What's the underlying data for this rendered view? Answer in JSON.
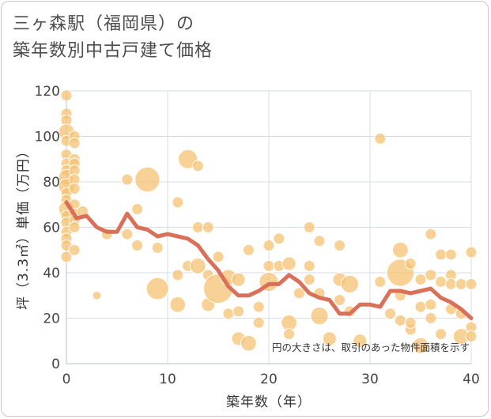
{
  "chart_data": {
    "type": "scatter",
    "title_line1": "三ヶ森駅（福岡県）の",
    "title_line2": "築年数別中古戸建て価格",
    "xlabel": "築年数（年）",
    "ylabel": "坪（3.3㎡）単価（万円）",
    "note": "円の大きさは、取引のあった物件面積を示す",
    "xlim": [
      0,
      40
    ],
    "ylim": [
      0,
      120
    ],
    "xticks": [
      "0",
      "10",
      "20",
      "30",
      "40"
    ],
    "yticks": [
      "0",
      "20",
      "40",
      "60",
      "80",
      "100",
      "120"
    ],
    "bubble_color": "#f5c173",
    "line_color": "#d9705a",
    "bubbles": [
      {
        "x": 0,
        "y": 118,
        "s": 1
      },
      {
        "x": 0,
        "y": 110,
        "s": 1
      },
      {
        "x": 0,
        "y": 107,
        "s": 1
      },
      {
        "x": 0,
        "y": 102,
        "s": 2
      },
      {
        "x": 0,
        "y": 98,
        "s": 1
      },
      {
        "x": 0,
        "y": 92,
        "s": 1
      },
      {
        "x": 0,
        "y": 88,
        "s": 1
      },
      {
        "x": 0,
        "y": 85,
        "s": 1
      },
      {
        "x": 0,
        "y": 82,
        "s": 2
      },
      {
        "x": 0,
        "y": 78,
        "s": 2
      },
      {
        "x": 0,
        "y": 75,
        "s": 1
      },
      {
        "x": 0,
        "y": 72,
        "s": 1
      },
      {
        "x": 0,
        "y": 68,
        "s": 2
      },
      {
        "x": 0,
        "y": 65,
        "s": 1
      },
      {
        "x": 0,
        "y": 62,
        "s": 1
      },
      {
        "x": 0,
        "y": 58,
        "s": 1
      },
      {
        "x": 0,
        "y": 55,
        "s": 1
      },
      {
        "x": 0,
        "y": 52,
        "s": 1
      },
      {
        "x": 0,
        "y": 47,
        "s": 1
      },
      {
        "x": 0.8,
        "y": 100,
        "s": 1
      },
      {
        "x": 0.8,
        "y": 97,
        "s": 1
      },
      {
        "x": 0.8,
        "y": 90,
        "s": 1
      },
      {
        "x": 0.8,
        "y": 88,
        "s": 1
      },
      {
        "x": 0.8,
        "y": 85,
        "s": 1
      },
      {
        "x": 0.8,
        "y": 81,
        "s": 1
      },
      {
        "x": 0.8,
        "y": 77,
        "s": 1
      },
      {
        "x": 0.8,
        "y": 70,
        "s": 1
      },
      {
        "x": 0.8,
        "y": 66,
        "s": 1
      },
      {
        "x": 0.8,
        "y": 63,
        "s": 1
      },
      {
        "x": 0.8,
        "y": 60,
        "s": 1
      },
      {
        "x": 0.8,
        "y": 50,
        "s": 1
      },
      {
        "x": 1.6,
        "y": 67,
        "s": 1
      },
      {
        "x": 3,
        "y": 30,
        "s": 0.6
      },
      {
        "x": 4,
        "y": 57,
        "s": 1
      },
      {
        "x": 6,
        "y": 81,
        "s": 1
      },
      {
        "x": 6,
        "y": 57,
        "s": 1
      },
      {
        "x": 7,
        "y": 68,
        "s": 1
      },
      {
        "x": 7,
        "y": 52,
        "s": 1
      },
      {
        "x": 8,
        "y": 81,
        "s": 5
      },
      {
        "x": 9,
        "y": 51,
        "s": 1
      },
      {
        "x": 9,
        "y": 33,
        "s": 4
      },
      {
        "x": 11,
        "y": 71,
        "s": 1
      },
      {
        "x": 11,
        "y": 39,
        "s": 1
      },
      {
        "x": 11,
        "y": 26,
        "s": 2
      },
      {
        "x": 12,
        "y": 90,
        "s": 3
      },
      {
        "x": 12,
        "y": 43,
        "s": 1
      },
      {
        "x": 13,
        "y": 87,
        "s": 1
      },
      {
        "x": 13,
        "y": 60,
        "s": 1
      },
      {
        "x": 13,
        "y": 43,
        "s": 2
      },
      {
        "x": 14,
        "y": 60,
        "s": 1
      },
      {
        "x": 14,
        "y": 39,
        "s": 1
      },
      {
        "x": 14,
        "y": 26,
        "s": 1.5
      },
      {
        "x": 15,
        "y": 47,
        "s": 1
      },
      {
        "x": 15,
        "y": 33,
        "s": 7
      },
      {
        "x": 16,
        "y": 38,
        "s": 2
      },
      {
        "x": 16,
        "y": 22,
        "s": 1
      },
      {
        "x": 17,
        "y": 37,
        "s": 1.5
      },
      {
        "x": 17,
        "y": 23,
        "s": 1
      },
      {
        "x": 17,
        "y": 11,
        "s": 1.5
      },
      {
        "x": 18,
        "y": 9,
        "s": 2
      },
      {
        "x": 18,
        "y": 50,
        "s": 1
      },
      {
        "x": 19,
        "y": 25,
        "s": 1
      },
      {
        "x": 19,
        "y": 18,
        "s": 1
      },
      {
        "x": 20,
        "y": 52,
        "s": 1
      },
      {
        "x": 20,
        "y": 43,
        "s": 1
      },
      {
        "x": 20,
        "y": 36,
        "s": 3
      },
      {
        "x": 21,
        "y": 55,
        "s": 1
      },
      {
        "x": 21,
        "y": 43,
        "s": 1
      },
      {
        "x": 22,
        "y": 44,
        "s": 1.5
      },
      {
        "x": 22,
        "y": 18,
        "s": 2
      },
      {
        "x": 22,
        "y": 13,
        "s": 1
      },
      {
        "x": 23,
        "y": 31,
        "s": 1
      },
      {
        "x": 24,
        "y": 60,
        "s": 1
      },
      {
        "x": 24,
        "y": 43,
        "s": 1
      },
      {
        "x": 24,
        "y": 37,
        "s": 1
      },
      {
        "x": 25,
        "y": 54,
        "s": 1
      },
      {
        "x": 25,
        "y": 31,
        "s": 1
      },
      {
        "x": 25,
        "y": 21,
        "s": 2.5
      },
      {
        "x": 26,
        "y": 11,
        "s": 1.5
      },
      {
        "x": 27,
        "y": 52,
        "s": 1
      },
      {
        "x": 27,
        "y": 37,
        "s": 1.5
      },
      {
        "x": 27,
        "y": 28,
        "s": 1
      },
      {
        "x": 28,
        "y": 35,
        "s": 2.5
      },
      {
        "x": 28,
        "y": 23,
        "s": 1
      },
      {
        "x": 29,
        "y": 10,
        "s": 1.5
      },
      {
        "x": 31,
        "y": 99,
        "s": 1
      },
      {
        "x": 31,
        "y": 36,
        "s": 1
      },
      {
        "x": 32,
        "y": 22,
        "s": 1
      },
      {
        "x": 33,
        "y": 40,
        "s": 6
      },
      {
        "x": 33,
        "y": 50,
        "s": 2
      },
      {
        "x": 33,
        "y": 30,
        "s": 1
      },
      {
        "x": 33,
        "y": 19,
        "s": 1
      },
      {
        "x": 34,
        "y": 44,
        "s": 1
      },
      {
        "x": 34,
        "y": 15,
        "s": 1
      },
      {
        "x": 34,
        "y": 18,
        "s": 1
      },
      {
        "x": 35,
        "y": 37,
        "s": 1
      },
      {
        "x": 35,
        "y": 25,
        "s": 1
      },
      {
        "x": 35,
        "y": 8,
        "s": 2
      },
      {
        "x": 36,
        "y": 57,
        "s": 1
      },
      {
        "x": 36,
        "y": 39,
        "s": 1
      },
      {
        "x": 36,
        "y": 26,
        "s": 1
      },
      {
        "x": 36,
        "y": 20,
        "s": 1
      },
      {
        "x": 37,
        "y": 48,
        "s": 1
      },
      {
        "x": 37,
        "y": 36,
        "s": 1
      },
      {
        "x": 37,
        "y": 13,
        "s": 1
      },
      {
        "x": 38,
        "y": 48,
        "s": 1
      },
      {
        "x": 38,
        "y": 39,
        "s": 1
      },
      {
        "x": 38,
        "y": 35,
        "s": 1
      },
      {
        "x": 38,
        "y": 24,
        "s": 1
      },
      {
        "x": 39,
        "y": 35,
        "s": 1
      },
      {
        "x": 39,
        "y": 22,
        "s": 1
      },
      {
        "x": 39,
        "y": 12,
        "s": 2
      },
      {
        "x": 40,
        "y": 49,
        "s": 1
      },
      {
        "x": 40,
        "y": 35,
        "s": 1
      },
      {
        "x": 40,
        "y": 16,
        "s": 1
      },
      {
        "x": 40,
        "y": 12,
        "s": 1
      }
    ],
    "trend": [
      {
        "x": 0,
        "y": 71
      },
      {
        "x": 1,
        "y": 64
      },
      {
        "x": 2,
        "y": 65
      },
      {
        "x": 3,
        "y": 60
      },
      {
        "x": 4,
        "y": 58
      },
      {
        "x": 5,
        "y": 58
      },
      {
        "x": 6,
        "y": 66
      },
      {
        "x": 7,
        "y": 60
      },
      {
        "x": 8,
        "y": 59
      },
      {
        "x": 9,
        "y": 56
      },
      {
        "x": 10,
        "y": 57
      },
      {
        "x": 11,
        "y": 56
      },
      {
        "x": 12,
        "y": 55
      },
      {
        "x": 13,
        "y": 52
      },
      {
        "x": 14,
        "y": 46
      },
      {
        "x": 15,
        "y": 41
      },
      {
        "x": 16,
        "y": 34
      },
      {
        "x": 17,
        "y": 30
      },
      {
        "x": 18,
        "y": 30
      },
      {
        "x": 19,
        "y": 32
      },
      {
        "x": 20,
        "y": 35
      },
      {
        "x": 21,
        "y": 35
      },
      {
        "x": 22,
        "y": 39
      },
      {
        "x": 23,
        "y": 36
      },
      {
        "x": 24,
        "y": 31
      },
      {
        "x": 25,
        "y": 29
      },
      {
        "x": 26,
        "y": 28
      },
      {
        "x": 27,
        "y": 22
      },
      {
        "x": 28,
        "y": 22
      },
      {
        "x": 29,
        "y": 26
      },
      {
        "x": 30,
        "y": 26
      },
      {
        "x": 31,
        "y": 25
      },
      {
        "x": 32,
        "y": 32
      },
      {
        "x": 33,
        "y": 32
      },
      {
        "x": 34,
        "y": 31
      },
      {
        "x": 35,
        "y": 32
      },
      {
        "x": 36,
        "y": 33
      },
      {
        "x": 37,
        "y": 29
      },
      {
        "x": 38,
        "y": 27
      },
      {
        "x": 39,
        "y": 24
      },
      {
        "x": 40,
        "y": 20
      }
    ]
  }
}
